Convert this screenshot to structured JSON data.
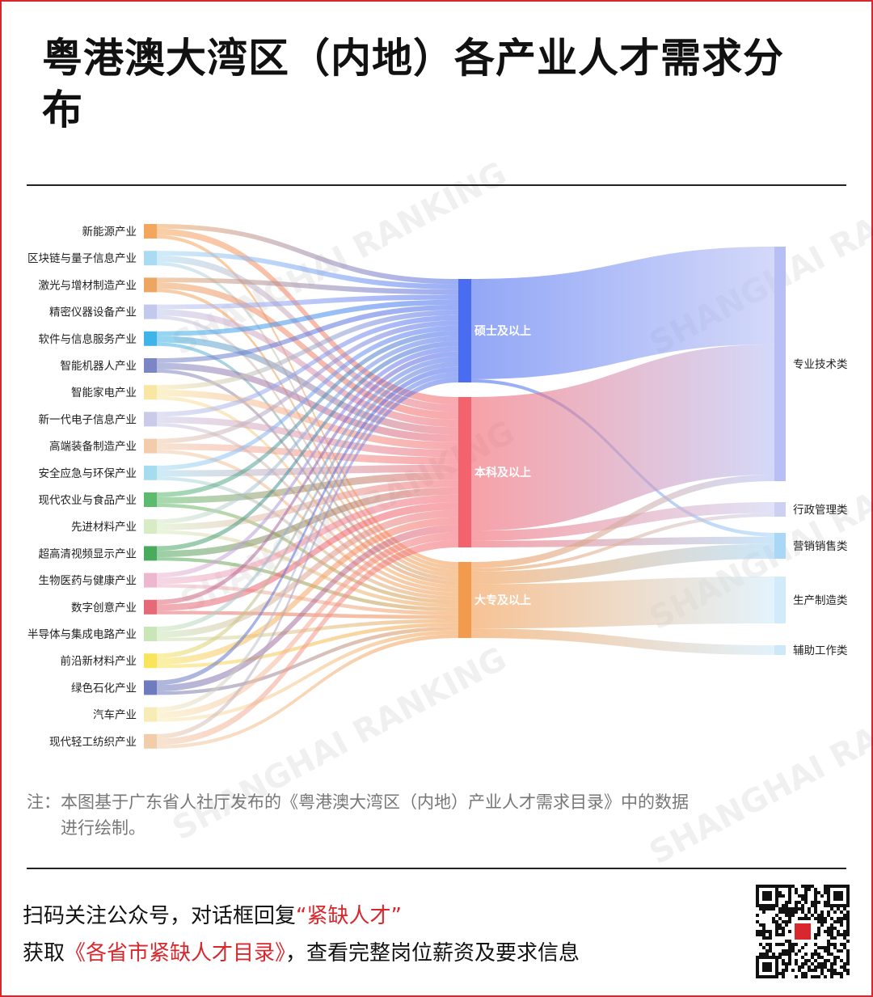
{
  "title": "粤港澳大湾区（内地）各产业人才需求分布",
  "note_line1": "注：本图基于广东省人社厅发布的《粤港澳大湾区（内地）产业人才需求目录》中的数据",
  "note_line2": "进行绘制。",
  "footer": {
    "line1_prefix": "扫码关注公众号，对话框回复",
    "line1_highlight": "“紧缺人才”",
    "line2_prefix": "获取",
    "line2_highlight": "《各省市紧缺人才目录》",
    "line2_suffix": "，查看完整岗位薪资及要求信息"
  },
  "watermark": "SHANGHAI RANKING",
  "colors": {
    "accent_red": "#d9272e",
    "master": "#4a6cf0",
    "bachelor": "#f2636d",
    "college": "#f29a4d"
  },
  "chart_data": {
    "type": "sankey",
    "industries": [
      {
        "name": "新能源产业",
        "color": "#f4a65d"
      },
      {
        "name": "区块链与量子信息产业",
        "color": "#a9dcf2"
      },
      {
        "name": "激光与增材制造产业",
        "color": "#eda562"
      },
      {
        "name": "精密仪器设备产业",
        "color": "#c3c9ec"
      },
      {
        "name": "软件与信息服务产业",
        "color": "#3fb4e8"
      },
      {
        "name": "智能机器人产业",
        "color": "#7a86c6"
      },
      {
        "name": "智能家电产业",
        "color": "#f8e7a3"
      },
      {
        "name": "新一代电子信息产业",
        "color": "#c9cbe8"
      },
      {
        "name": "高端装备制造产业",
        "color": "#f3ccac"
      },
      {
        "name": "安全应急与环保产业",
        "color": "#a6dcf0"
      },
      {
        "name": "现代农业与食品产业",
        "color": "#5cbb6c"
      },
      {
        "name": "先进材料产业",
        "color": "#d7ecc4"
      },
      {
        "name": "超高清视频显示产业",
        "color": "#4bab5d"
      },
      {
        "name": "生物医药与健康产业",
        "color": "#ecb7cf"
      },
      {
        "name": "数字创意产业",
        "color": "#e56977"
      },
      {
        "name": "半导体与集成电路产业",
        "color": "#c9e6b7"
      },
      {
        "name": "前沿新材料产业",
        "color": "#f8e55b"
      },
      {
        "name": "绿色石化产业",
        "color": "#6e7cbf"
      },
      {
        "name": "汽车产业",
        "color": "#f8ecb6"
      },
      {
        "name": "现代轻工纺织产业",
        "color": "#f1cda9"
      }
    ],
    "education": [
      {
        "name": "硕士及以上",
        "color": "#4a6cf0",
        "value": 31
      },
      {
        "name": "本科及以上",
        "color": "#f2636d",
        "value": 45
      },
      {
        "name": "大专及以上",
        "color": "#f29a4d",
        "value": 24
      }
    ],
    "jobs": [
      {
        "name": "专业技术类",
        "color": "#b7bff5",
        "value": 72
      },
      {
        "name": "行政管理类",
        "color": "#cdd0f3",
        "value": 4
      },
      {
        "name": "营销销售类",
        "color": "#a9d7f6",
        "value": 7
      },
      {
        "name": "生产制造类",
        "color": "#d1ebfa",
        "value": 14
      },
      {
        "name": "辅助工作类",
        "color": "#cfe8f8",
        "value": 3
      }
    ],
    "edu_to_job": [
      {
        "source": "硕士及以上",
        "target": "专业技术类",
        "value": 30
      },
      {
        "source": "硕士及以上",
        "target": "营销销售类",
        "value": 1
      },
      {
        "source": "本科及以上",
        "target": "专业技术类",
        "value": 40
      },
      {
        "source": "本科及以上",
        "target": "行政管理类",
        "value": 3
      },
      {
        "source": "本科及以上",
        "target": "营销销售类",
        "value": 2
      },
      {
        "source": "大专及以上",
        "target": "专业技术类",
        "value": 2
      },
      {
        "source": "大专及以上",
        "target": "行政管理类",
        "value": 1
      },
      {
        "source": "大专及以上",
        "target": "营销销售类",
        "value": 4
      },
      {
        "source": "大专及以上",
        "target": "生产制造类",
        "value": 14
      },
      {
        "source": "大专及以上",
        "target": "辅助工作类",
        "value": 3
      }
    ]
  }
}
